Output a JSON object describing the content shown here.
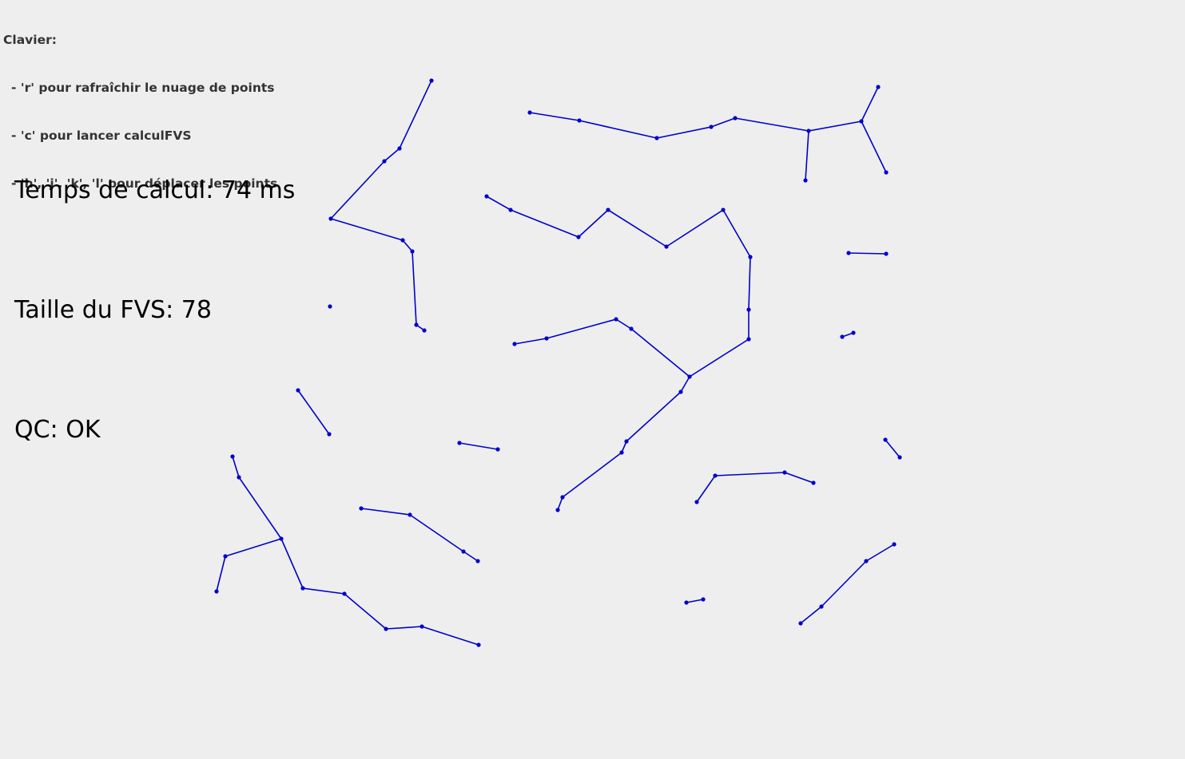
{
  "help": {
    "title": "Clavier:",
    "lines": [
      "- 'r' pour rafraîchir le nuage de points",
      "- 'c' pour lancer calculFVS",
      "- 'h', 'j', 'k', 'l' pour déplacer les points"
    ]
  },
  "stats": {
    "time": "Temps de calcul: 74 ms",
    "fvs_size": "Taille du FVS: 78",
    "qc": "QC: OK"
  },
  "colors": {
    "background": "#eeeeee",
    "edge": "#0000cc",
    "point": "#0000cc",
    "text": "#000000",
    "help_text": "#333333"
  }
}
